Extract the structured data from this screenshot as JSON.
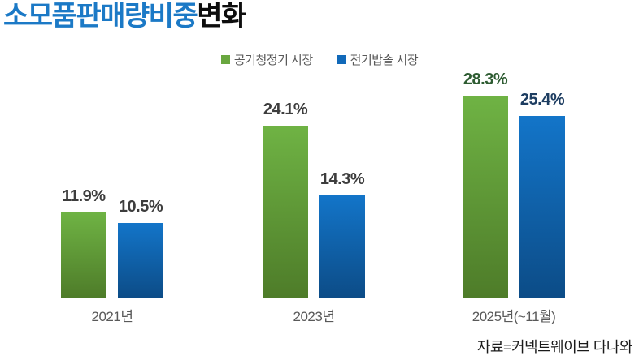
{
  "title": {
    "highlight": "소모품판매량비중",
    "rest": "변화",
    "highlight_color": "#1b79c6",
    "rest_color": "#0d0d0d"
  },
  "legend": [
    {
      "label": "공기청정기 시장",
      "color": "#69a73f"
    },
    {
      "label": "전기밥솥 시장",
      "color": "#1169b9"
    }
  ],
  "source": "자료=커넥트웨이브 다나와",
  "chart_data": {
    "type": "bar",
    "title": "소모품판매량비중 변화",
    "categories": [
      "2021년",
      "2023년",
      "2025년(~11월)"
    ],
    "series": [
      {
        "name": "공기청정기 시장",
        "values": [
          11.9,
          24.1,
          28.3
        ],
        "gradient_top": "#6fb344",
        "gradient_bottom": "#4e7c29"
      },
      {
        "name": "전기밥솥 시장",
        "values": [
          10.5,
          14.3,
          25.4
        ],
        "gradient_top": "#1375c9",
        "gradient_bottom": "#0c4c87"
      }
    ],
    "unit": "%",
    "ylim": [
      0,
      30
    ],
    "grid": false,
    "legend_position": "top-center",
    "value_label_color": "#3d3d3d",
    "emphasized_category_index": 2,
    "emphasized_label_colors": [
      "#2e5c32",
      "#1d3d61"
    ],
    "baseline_color": "#d9d9d9"
  }
}
